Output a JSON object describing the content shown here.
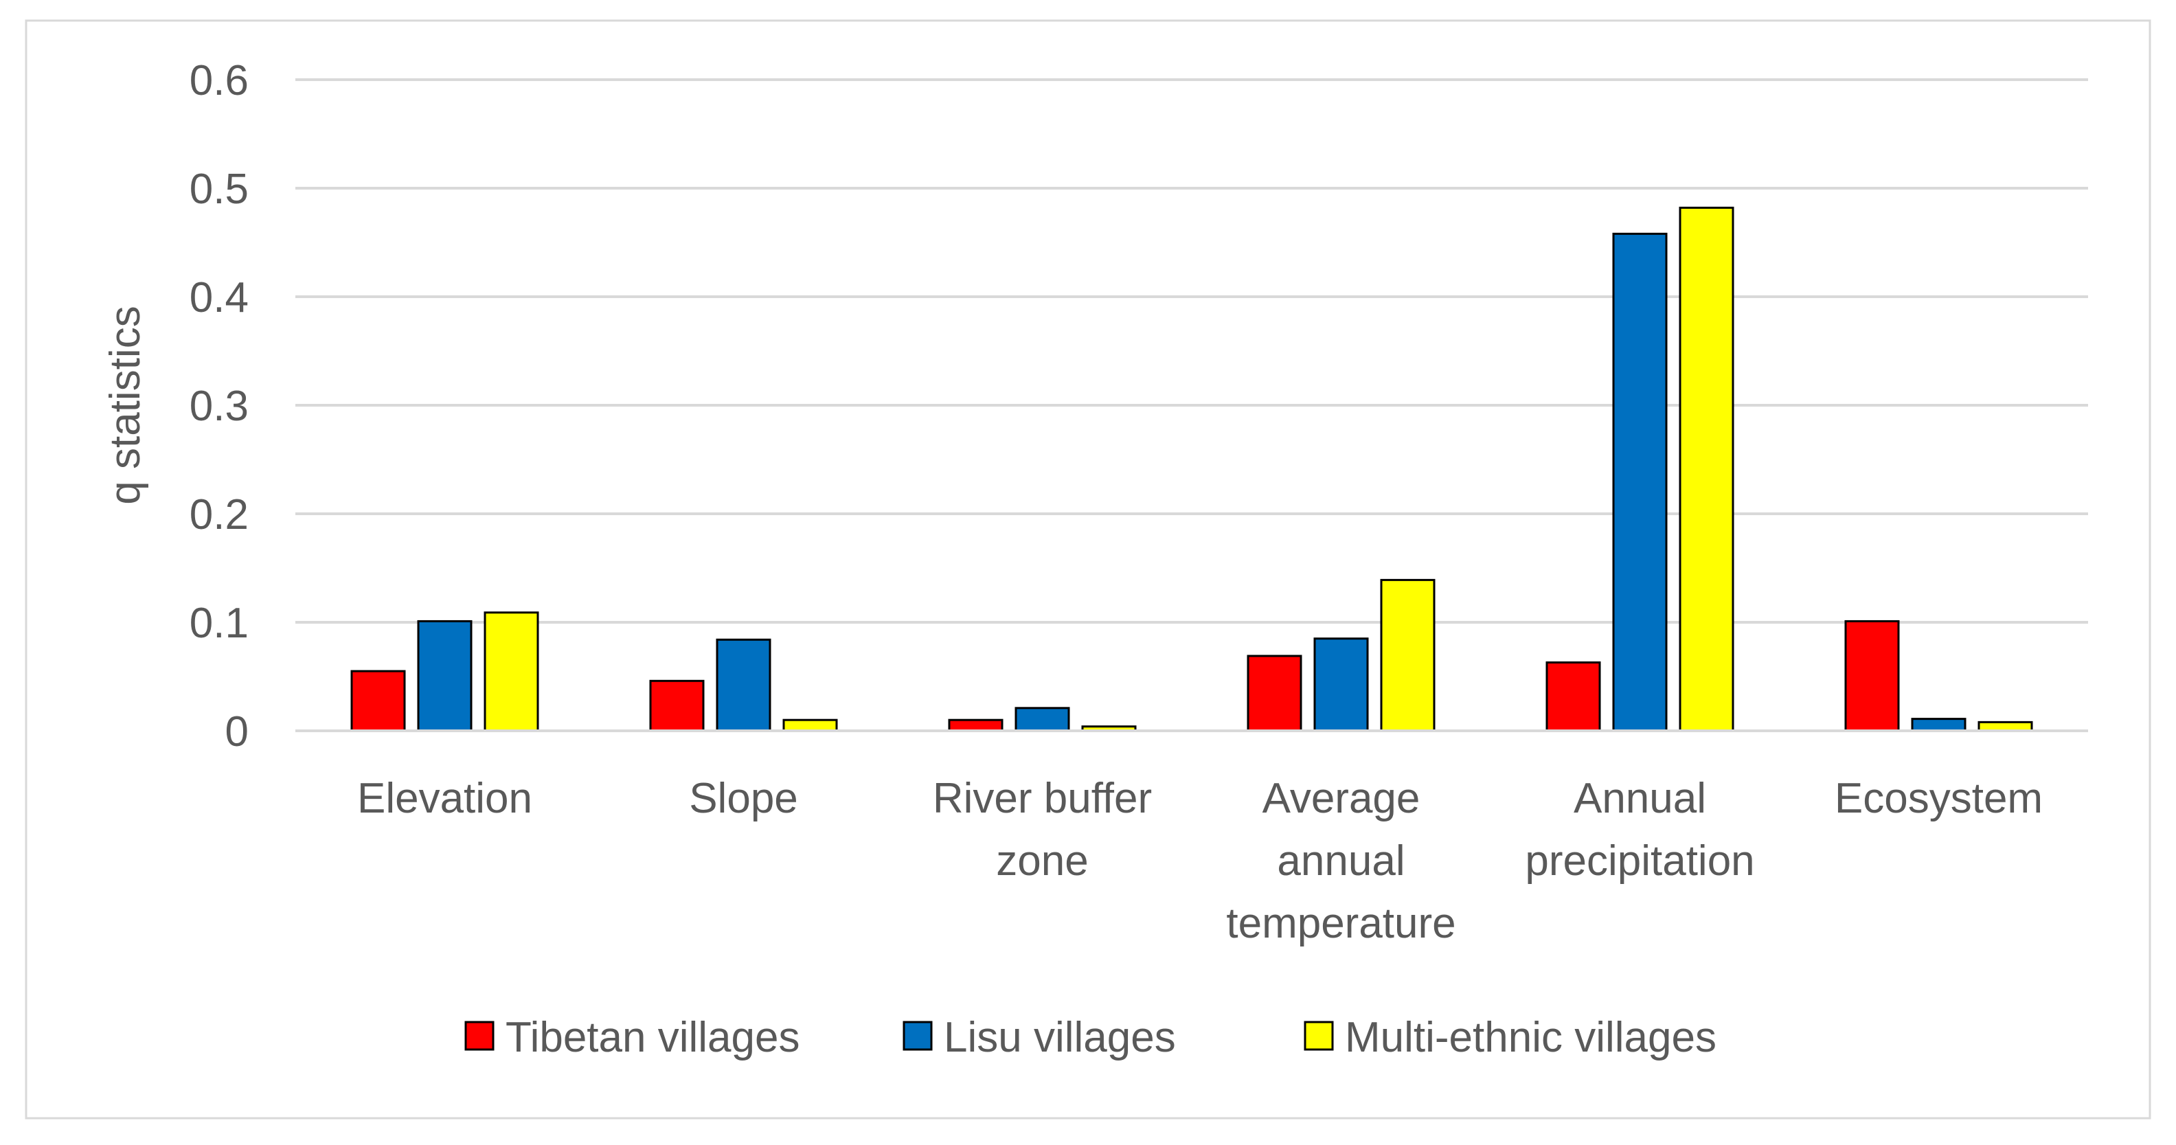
{
  "chart_data": {
    "type": "bar",
    "title": "",
    "xlabel": "",
    "ylabel": "q statistics",
    "ylim": [
      0,
      0.6
    ],
    "yticks": [
      "0",
      "0.1",
      "0.2",
      "0.3",
      "0.4",
      "0.5",
      "0.6"
    ],
    "grid": true,
    "legend_position": "bottom",
    "categories": [
      [
        "Elevation"
      ],
      [
        "Slope"
      ],
      [
        "River buffer",
        "zone"
      ],
      [
        "Average",
        "annual",
        "temperature"
      ],
      [
        "Annual",
        "precipitation"
      ],
      [
        "Ecosystem"
      ]
    ],
    "series": [
      {
        "name": "Tibetan villages",
        "color": "#ff0000",
        "values": [
          0.055,
          0.046,
          0.01,
          0.069,
          0.063,
          0.101
        ]
      },
      {
        "name": "Lisu villages",
        "color": "#0070c0",
        "values": [
          0.101,
          0.084,
          0.021,
          0.085,
          0.458,
          0.011
        ]
      },
      {
        "name": "Multi-ethnic villages",
        "color": "#ffff00",
        "values": [
          0.109,
          0.01,
          0.004,
          0.139,
          0.482,
          0.008
        ]
      }
    ]
  }
}
